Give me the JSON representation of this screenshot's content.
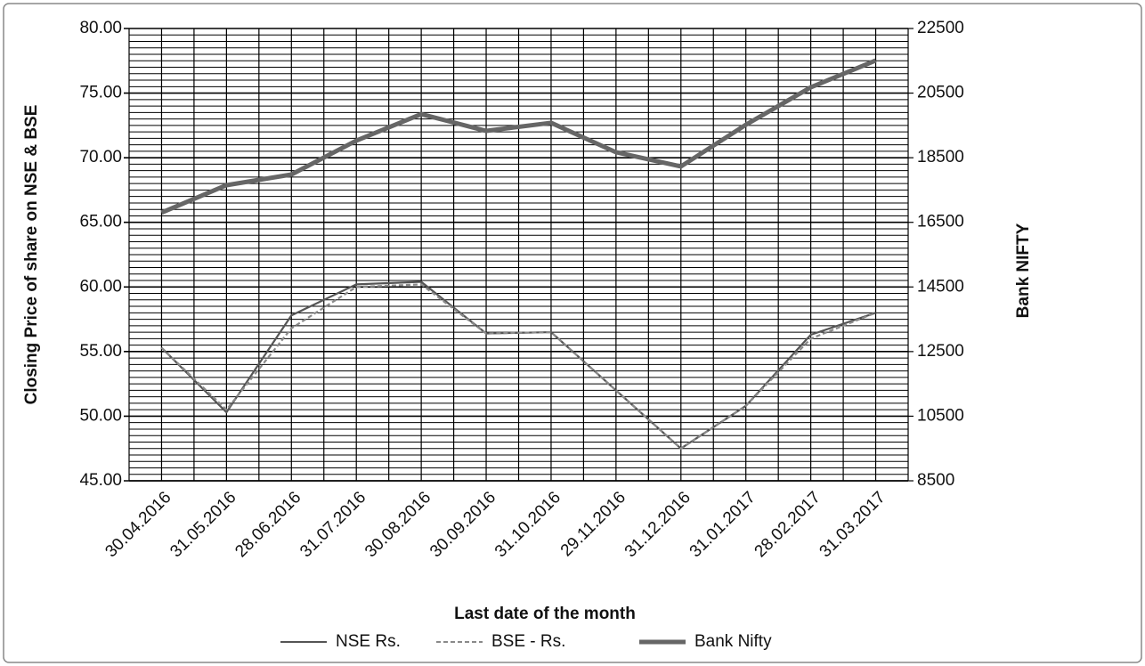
{
  "chart_data": {
    "type": "line",
    "x_label": "Last date of the month",
    "y_label": "Closing Price of share on NSE & BSE",
    "y2_label": "Bank NIFTY",
    "categories": [
      "30.04.2016",
      "31.05.2016",
      "28.06.2016",
      "31.07.2016",
      "30.08.2016",
      "30.09.2016",
      "31.10.2016",
      "29.11.2016",
      "31.12.2016",
      "31.01.2017",
      "28.02.2017",
      "31.03.2017"
    ],
    "series": [
      {
        "name": "NSE Rs.",
        "color": "#555555",
        "values": [
          55.3,
          50.3,
          57.8,
          60.2,
          60.4,
          56.4,
          56.5,
          52.0,
          47.5,
          50.8,
          56.3,
          58.0
        ]
      },
      {
        "name": "BSE - Rs.",
        "color": "#8a8a8a",
        "dashed": true,
        "values": [
          55.3,
          50.5,
          56.8,
          60.0,
          60.2,
          56.4,
          56.5,
          52.0,
          47.5,
          50.8,
          56.0,
          58.0
        ]
      },
      {
        "name": "Bank Nifty",
        "color": "#666666",
        "axis": "y2",
        "values": [
          16800,
          17650,
          17980,
          19030,
          19850,
          19330,
          19580,
          18670,
          18230,
          19520,
          20680,
          21510
        ]
      }
    ],
    "ylim": [
      45,
      80
    ],
    "yticks": [
      {
        "value": 45,
        "label": "45.00"
      },
      {
        "value": 50,
        "label": "50.00"
      },
      {
        "value": 55,
        "label": "55.00"
      },
      {
        "value": 60,
        "label": "60.00"
      },
      {
        "value": 65,
        "label": "65.00"
      },
      {
        "value": 70,
        "label": "70.00"
      },
      {
        "value": 75,
        "label": "75.00"
      },
      {
        "value": 80,
        "label": "80.00"
      }
    ],
    "y2lim": [
      8500,
      22500
    ],
    "y2ticks": [
      8500,
      10500,
      12500,
      14500,
      16500,
      18500,
      20500,
      22500
    ],
    "grid": true,
    "legend": "bottom"
  }
}
